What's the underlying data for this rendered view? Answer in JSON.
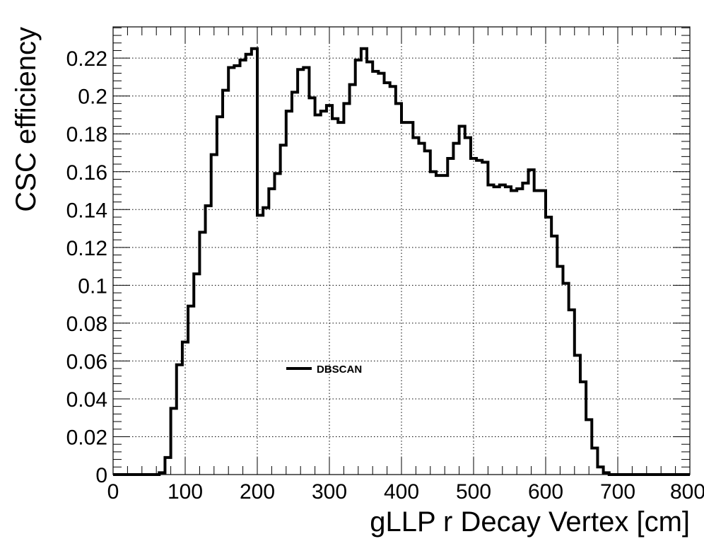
{
  "chart_data": {
    "type": "line",
    "step": true,
    "title": "",
    "xlabel": "gLLP r Decay Vertex [cm]",
    "ylabel": "CSC efficiency",
    "xlim": [
      0,
      800
    ],
    "ylim": [
      0,
      0.2365
    ],
    "grid": true,
    "legend_position": "center-left",
    "x_ticks": [
      0,
      100,
      200,
      300,
      400,
      500,
      600,
      700,
      800
    ],
    "x_tick_labels": [
      "0",
      "100",
      "200",
      "300",
      "400",
      "500",
      "600",
      "700",
      "800"
    ],
    "y_ticks": [
      0,
      0.02,
      0.04,
      0.06,
      0.08,
      0.1,
      0.12,
      0.14,
      0.16,
      0.18,
      0.2,
      0.22
    ],
    "y_tick_labels": [
      "0",
      "0.02",
      "0.04",
      "0.06",
      "0.08",
      "0.1",
      "0.12",
      "0.14",
      "0.16",
      "0.18",
      "0.2",
      "0.22"
    ],
    "bin_width": 8,
    "series": [
      {
        "name": "DBSCAN",
        "color": "#000000",
        "x_start": 0,
        "values": [
          0,
          0,
          0,
          0,
          0,
          0,
          0,
          0,
          0.001,
          0.009,
          0.035,
          0.058,
          0.07,
          0.089,
          0.106,
          0.128,
          0.142,
          0.169,
          0.189,
          0.203,
          0.215,
          0.216,
          0.219,
          0.222,
          0.225,
          0.137,
          0.141,
          0.151,
          0.159,
          0.174,
          0.192,
          0.202,
          0.214,
          0.215,
          0.199,
          0.19,
          0.192,
          0.195,
          0.188,
          0.186,
          0.196,
          0.206,
          0.219,
          0.225,
          0.218,
          0.213,
          0.212,
          0.207,
          0.205,
          0.196,
          0.186,
          0.186,
          0.178,
          0.175,
          0.171,
          0.16,
          0.158,
          0.158,
          0.167,
          0.175,
          0.184,
          0.178,
          0.167,
          0.166,
          0.165,
          0.153,
          0.152,
          0.153,
          0.152,
          0.15,
          0.151,
          0.154,
          0.161,
          0.15,
          0.15,
          0.136,
          0.126,
          0.11,
          0.101,
          0.087,
          0.063,
          0.049,
          0.029,
          0.014,
          0.004,
          0.001,
          0,
          0,
          0,
          0,
          0,
          0,
          0,
          0,
          0,
          0,
          0,
          0,
          0,
          0
        ]
      }
    ]
  }
}
